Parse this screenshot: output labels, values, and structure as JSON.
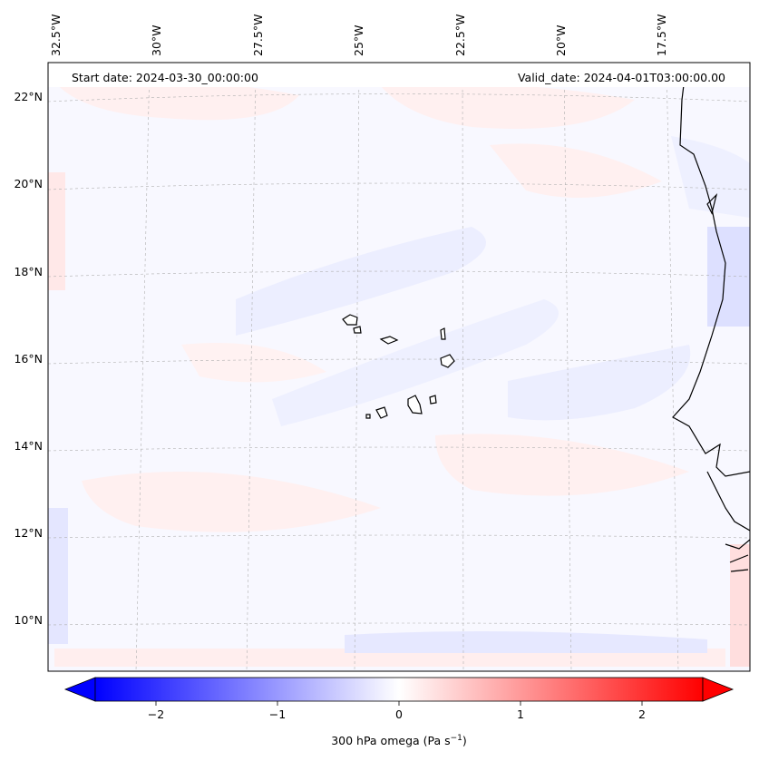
{
  "header": {
    "start_date": "Start date: 2024-03-30_00:00:00",
    "valid_date": "Valid_date: 2024-04-01T03:00:00.00"
  },
  "axes": {
    "lon_labels": [
      "32.5°W",
      "30°W",
      "27.5°W",
      "25°W",
      "22.5°W",
      "20°W",
      "17.5°W"
    ],
    "lat_labels": [
      "22°N",
      "20°N",
      "18°N",
      "16°N",
      "14°N",
      "12°N",
      "10°N"
    ]
  },
  "colorbar": {
    "ticks": [
      "−2",
      "−1",
      "0",
      "1",
      "2"
    ],
    "tick_values": [
      -2,
      -1,
      0,
      1,
      2
    ],
    "range": [
      -2.5,
      2.5
    ],
    "label_main": "300 hPa omega (Pa s",
    "label_sup": "−1",
    "label_close": ")",
    "colors": {
      "low": "#0000ff",
      "mid": "#ffffff",
      "high": "#ff0000"
    }
  },
  "colors": {
    "gridline": "#b0b0b0",
    "coastline": "#000000",
    "field_blue": "#e6e8ff",
    "field_red": "#ffecec"
  }
}
